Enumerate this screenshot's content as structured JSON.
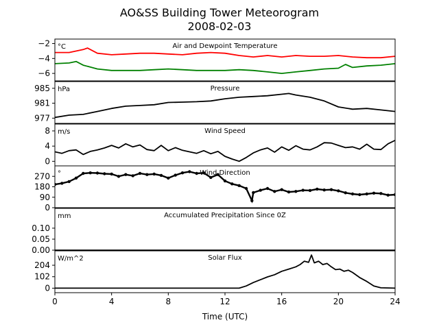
{
  "title": "AO&SS Building Tower Meteorogram",
  "subtitle": "2008-02-03",
  "xlabel": "Time (UTC)",
  "x_ticks": [
    "0",
    "4",
    "8",
    "12",
    "16",
    "20",
    "24"
  ],
  "chart_data": [
    {
      "type": "line",
      "title": "Air and Dewpoint Temperature",
      "unit": "°C",
      "ylim": [
        -7.0,
        -1.4
      ],
      "y_ticks": [
        -2,
        -4,
        -6
      ],
      "y_tick_labels": [
        "−2",
        "−4",
        "−6"
      ],
      "series": [
        {
          "color": "#ff0000",
          "x": [
            0,
            1,
            2,
            2.3,
            3,
            4,
            5,
            6,
            7,
            8,
            9,
            10,
            11,
            12,
            13,
            14,
            15,
            16,
            17,
            18,
            19,
            20,
            21,
            22,
            23,
            24
          ],
          "y": [
            -3.2,
            -3.2,
            -2.8,
            -2.6,
            -3.3,
            -3.5,
            -3.4,
            -3.3,
            -3.3,
            -3.4,
            -3.5,
            -3.3,
            -3.2,
            -3.3,
            -3.6,
            -3.8,
            -3.6,
            -3.8,
            -3.6,
            -3.7,
            -3.7,
            -3.6,
            -3.8,
            -3.9,
            -3.9,
            -3.7
          ]
        },
        {
          "color": "#008000",
          "x": [
            0,
            1,
            1.5,
            2,
            3,
            4,
            5,
            6,
            7,
            8,
            9,
            10,
            11,
            12,
            13,
            14,
            15,
            16,
            17,
            18,
            19,
            20,
            20.5,
            21,
            22,
            23,
            24
          ],
          "y": [
            -4.7,
            -4.6,
            -4.4,
            -4.9,
            -5.4,
            -5.6,
            -5.6,
            -5.6,
            -5.5,
            -5.4,
            -5.5,
            -5.6,
            -5.6,
            -5.6,
            -5.5,
            -5.6,
            -5.8,
            -6.0,
            -5.8,
            -5.6,
            -5.4,
            -5.3,
            -4.8,
            -5.2,
            -5.0,
            -4.9,
            -4.7
          ]
        }
      ]
    },
    {
      "type": "line",
      "title": "Pressure",
      "unit": "hPa",
      "ylim": [
        975.6,
        986.8
      ],
      "y_ticks": [
        985,
        981,
        977
      ],
      "y_tick_labels": [
        "985",
        "981",
        "977"
      ],
      "series": [
        {
          "color": "#000000",
          "x": [
            0,
            1,
            2,
            3,
            4,
            5,
            6,
            7,
            8,
            9,
            10,
            11,
            12,
            13,
            14,
            15,
            16,
            16.5,
            17,
            18,
            19,
            20,
            21,
            22,
            23,
            24
          ],
          "y": [
            977.2,
            977.8,
            978.0,
            978.8,
            979.6,
            980.2,
            980.4,
            980.6,
            981.2,
            981.3,
            981.4,
            981.6,
            982.2,
            982.6,
            982.8,
            983.0,
            983.4,
            983.6,
            983.2,
            982.6,
            981.6,
            980.0,
            979.4,
            979.6,
            979.2,
            978.8
          ]
        }
      ]
    },
    {
      "type": "line",
      "title": "Wind Speed",
      "unit": "m/s",
      "ylim": [
        -1.2,
        9.8
      ],
      "y_ticks": [
        8,
        4,
        0
      ],
      "y_tick_labels": [
        "8",
        "4",
        "0"
      ],
      "series": [
        {
          "color": "#000000",
          "x": [
            0,
            0.5,
            1,
            1.5,
            2,
            2.5,
            3,
            3.5,
            4,
            4.5,
            5,
            5.5,
            6,
            6.5,
            7,
            7.5,
            8,
            8.5,
            9,
            9.5,
            10,
            10.5,
            11,
            11.5,
            12,
            12.5,
            13,
            13.5,
            14,
            14.5,
            15,
            15.5,
            16,
            16.5,
            17,
            17.5,
            18,
            18.5,
            19,
            19.5,
            20,
            20.5,
            21,
            21.5,
            22,
            22.5,
            23,
            23.5,
            24
          ],
          "y": [
            2.5,
            2.1,
            2.8,
            3.0,
            1.8,
            2.6,
            3.0,
            3.5,
            4.2,
            3.5,
            4.6,
            3.8,
            4.3,
            3.1,
            2.8,
            4.2,
            2.8,
            3.6,
            2.9,
            2.5,
            2.1,
            2.8,
            2.0,
            2.6,
            1.3,
            0.6,
            0.0,
            1.0,
            2.2,
            3.0,
            3.5,
            2.4,
            3.8,
            2.9,
            4.1,
            3.2,
            3.0,
            3.8,
            4.9,
            4.8,
            4.2,
            3.6,
            3.8,
            3.2,
            4.5,
            3.2,
            3.1,
            4.6,
            5.5
          ]
        }
      ]
    },
    {
      "type": "scatter",
      "title": "Wind Direction",
      "unit": "°",
      "ylim": [
        0,
        360
      ],
      "y_ticks": [
        270,
        180,
        90,
        0
      ],
      "y_tick_labels": [
        "270",
        "180",
        "90",
        "0"
      ],
      "series": [
        {
          "color": "#000000",
          "x": [
            0,
            0.5,
            1,
            1.5,
            2,
            2.5,
            3,
            3.5,
            4,
            4.5,
            5,
            5.5,
            6,
            6.5,
            7,
            7.5,
            8,
            8.5,
            9,
            9.5,
            10,
            10.5,
            11,
            11.5,
            12,
            12.5,
            13,
            13.5,
            13.9,
            14,
            14.5,
            15,
            15.5,
            16,
            16.5,
            17,
            17.5,
            18,
            18.5,
            19,
            19.5,
            20,
            20.5,
            21,
            21.5,
            22,
            22.5,
            23,
            23.5,
            24
          ],
          "y": [
            200,
            210,
            225,
            255,
            295,
            300,
            298,
            292,
            290,
            270,
            285,
            275,
            295,
            285,
            290,
            278,
            255,
            280,
            300,
            310,
            295,
            300,
            260,
            285,
            230,
            205,
            190,
            165,
            60,
            130,
            150,
            165,
            140,
            155,
            135,
            140,
            150,
            148,
            160,
            152,
            155,
            145,
            128,
            118,
            112,
            118,
            125,
            122,
            108,
            112
          ]
        }
      ]
    },
    {
      "type": "line",
      "title": "Accumulated Precipitation Since 0Z",
      "unit": "mm",
      "ylim": [
        0,
        0.19
      ],
      "y_ticks": [
        0.1,
        0.05,
        0.0
      ],
      "y_tick_labels": [
        "0.10",
        "0.05",
        "0.00"
      ],
      "series": [
        {
          "color": "#000000",
          "x": [
            0,
            24
          ],
          "y": [
            0,
            0
          ]
        }
      ]
    },
    {
      "type": "line",
      "title": "Solar Flux",
      "unit": "W/m^2",
      "ylim": [
        -40,
        332
      ],
      "y_ticks": [
        204,
        102,
        0
      ],
      "y_tick_labels": [
        "204",
        "102",
        "0"
      ],
      "series": [
        {
          "color": "#000000",
          "x": [
            0,
            4,
            8,
            12,
            13.0,
            13.5,
            14,
            14.5,
            15,
            15.5,
            16,
            16.5,
            17,
            17.3,
            17.6,
            17.9,
            18.1,
            18.3,
            18.6,
            18.9,
            19.2,
            19.5,
            19.8,
            20.1,
            20.4,
            20.7,
            21.0,
            21.5,
            22,
            22.5,
            23,
            24
          ],
          "y": [
            0,
            0,
            0,
            0,
            0,
            20,
            50,
            75,
            100,
            120,
            150,
            170,
            190,
            210,
            240,
            230,
            295,
            225,
            240,
            210,
            220,
            190,
            165,
            170,
            150,
            160,
            140,
            95,
            60,
            20,
            3,
            0
          ]
        }
      ]
    }
  ]
}
